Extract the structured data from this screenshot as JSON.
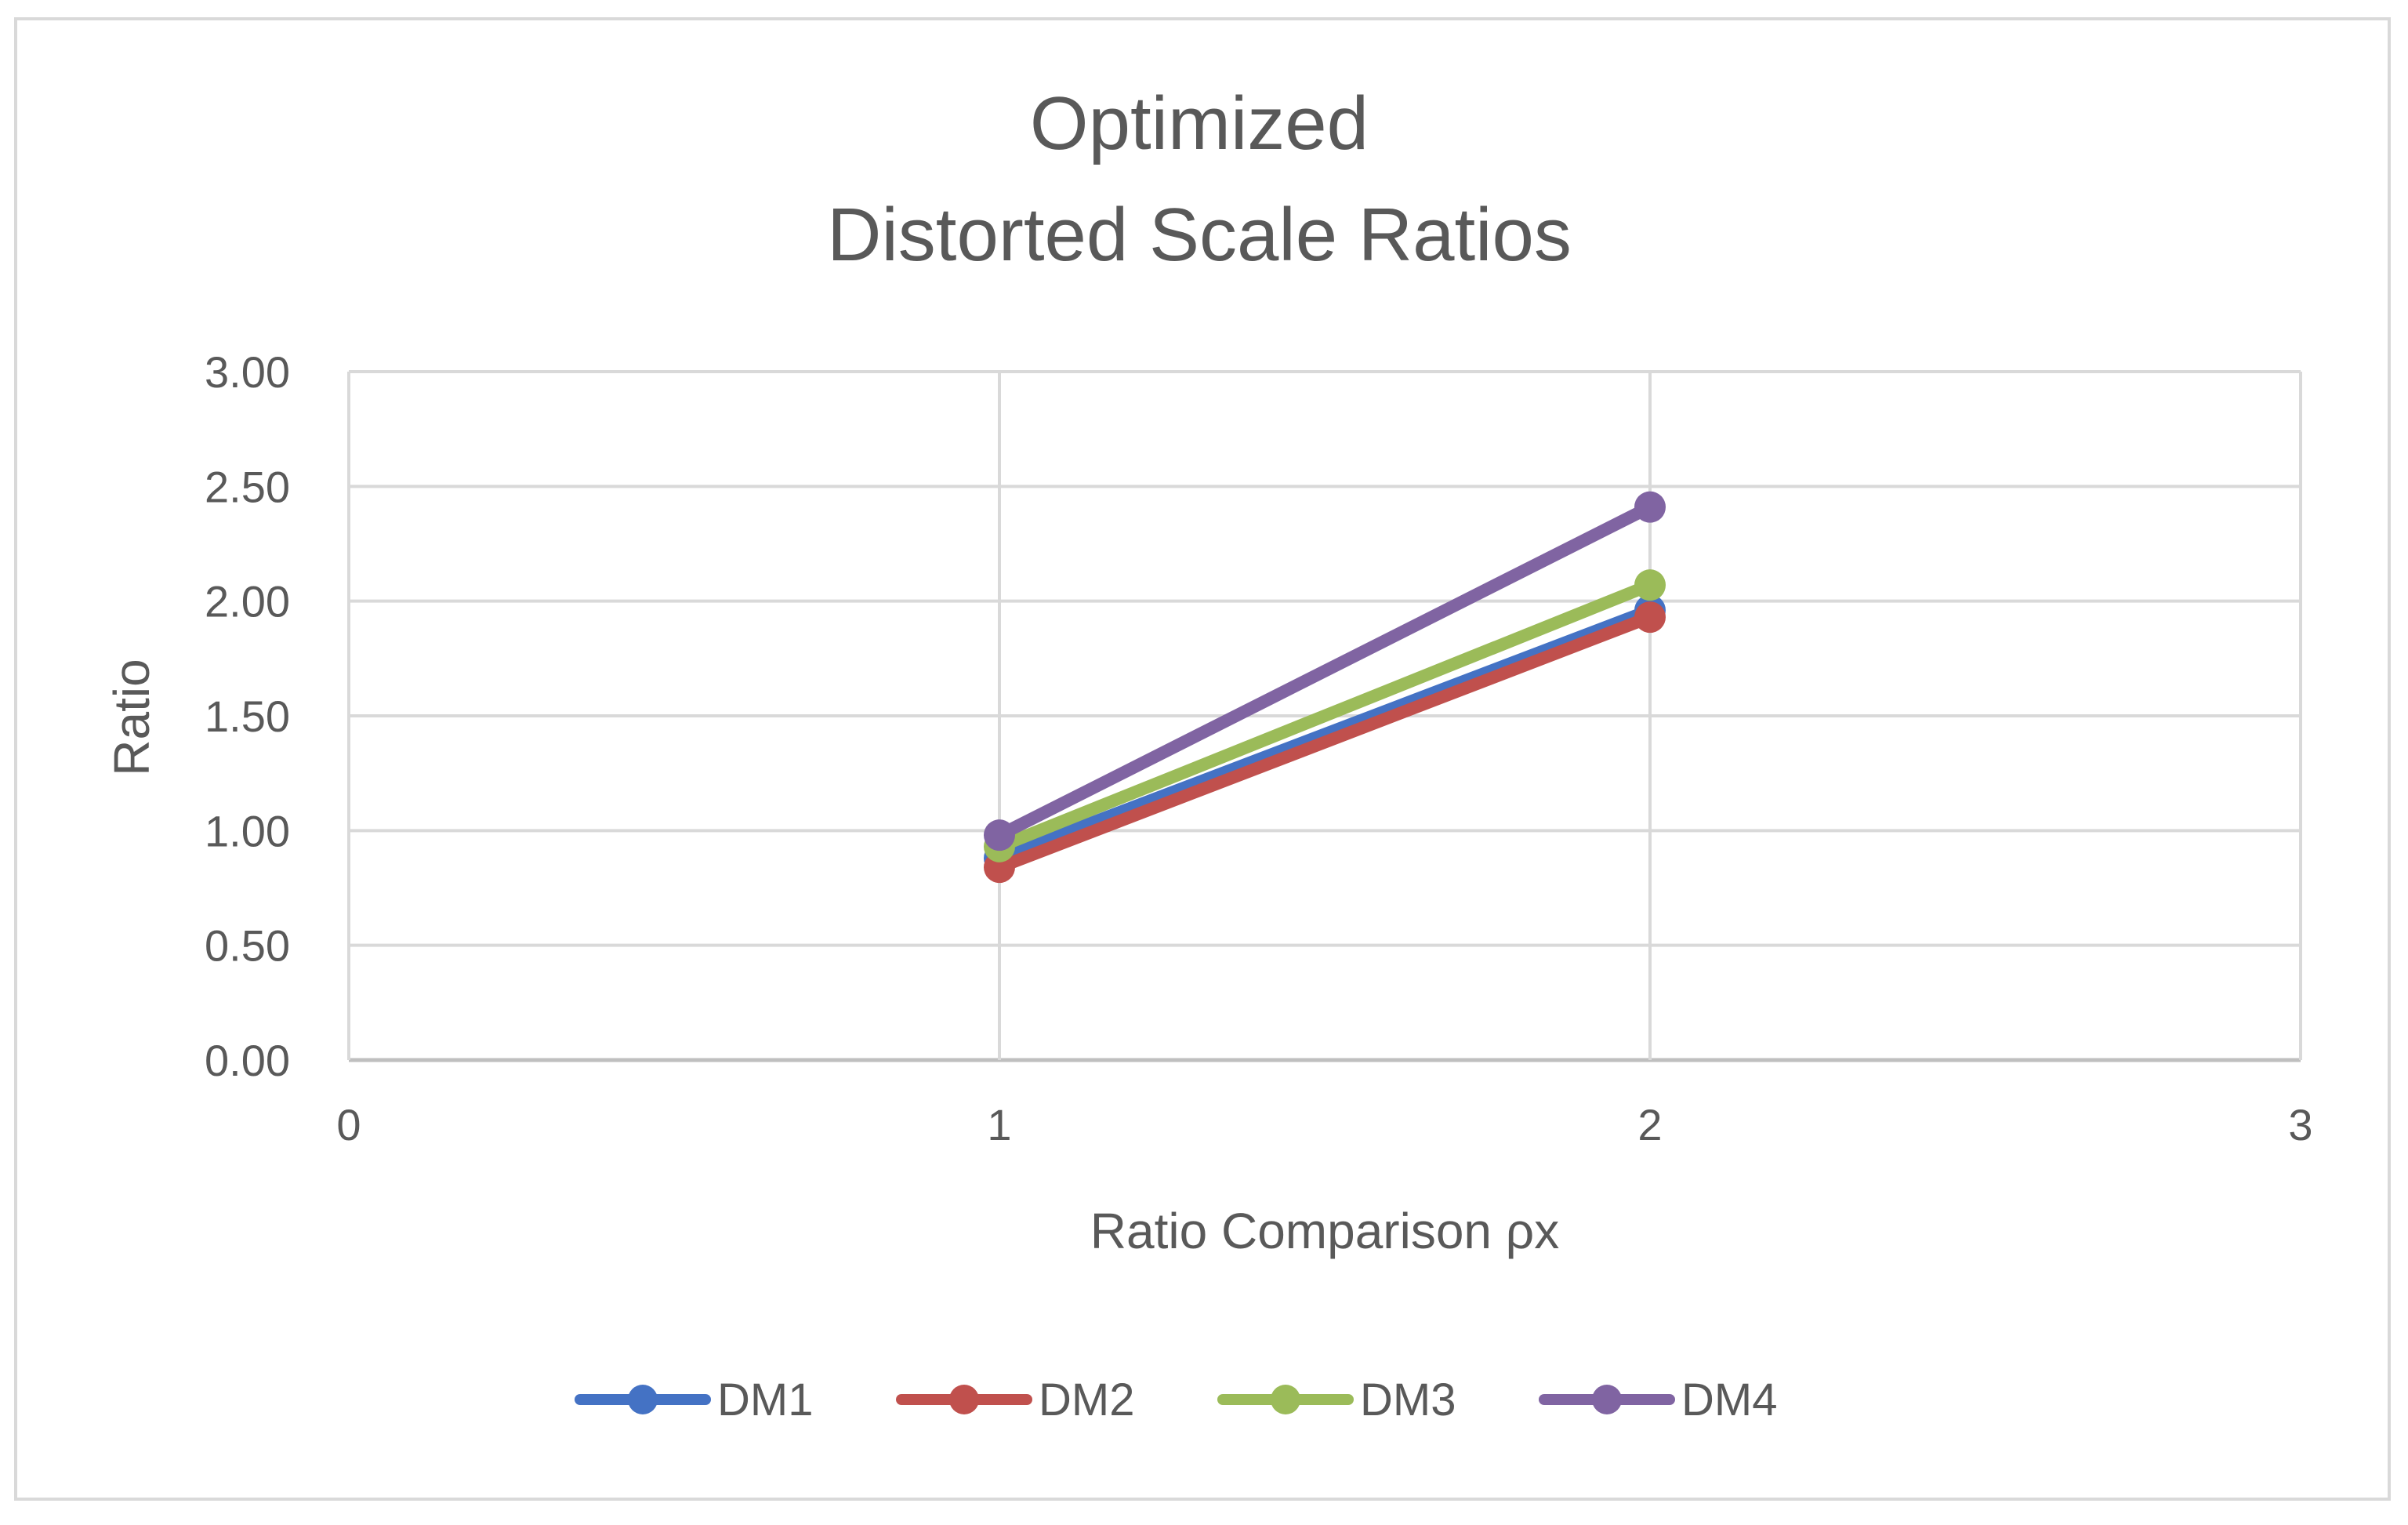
{
  "chart_data": {
    "type": "line",
    "title_lines": [
      "Optimized",
      "Distorted Scale Ratios"
    ],
    "xlabel": "Ratio Comparison ρx",
    "ylabel": "Ratio",
    "xlim": [
      0,
      3
    ],
    "ylim": [
      0,
      3
    ],
    "x_ticks": [
      "0",
      "1",
      "2",
      "3"
    ],
    "y_ticks": [
      "0.00",
      "0.50",
      "1.00",
      "1.50",
      "2.00",
      "2.50",
      "3.00"
    ],
    "grid": true,
    "legend_position": "bottom",
    "series": [
      {
        "name": "DM1",
        "color": "#4472c4",
        "x": [
          1,
          2
        ],
        "values": [
          0.88,
          1.96
        ]
      },
      {
        "name": "DM2",
        "color": "#c0504d",
        "x": [
          1,
          2
        ],
        "values": [
          0.84,
          1.93
        ]
      },
      {
        "name": "DM3",
        "color": "#9bbb59",
        "x": [
          1,
          2
        ],
        "values": [
          0.93,
          2.07
        ]
      },
      {
        "name": "DM4",
        "color": "#8064a2",
        "x": [
          1,
          2
        ],
        "values": [
          0.98,
          2.41
        ]
      }
    ]
  }
}
